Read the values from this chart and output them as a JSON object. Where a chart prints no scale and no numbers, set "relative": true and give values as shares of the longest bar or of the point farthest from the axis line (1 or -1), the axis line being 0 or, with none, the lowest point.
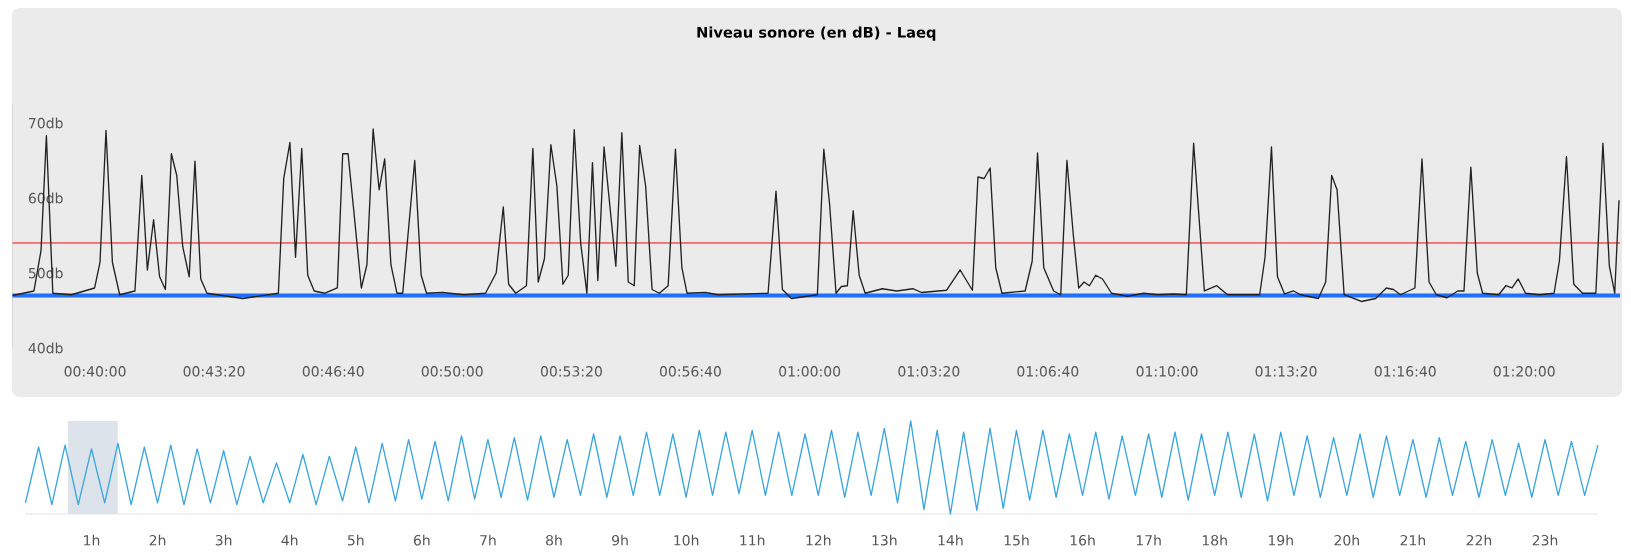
{
  "chart_data": [
    {
      "type": "line",
      "title": "Niveau sonore (en dB) - Laeq",
      "color": "#222222",
      "marker": "none",
      "x": [
        0.6282,
        0.6382,
        0.6415,
        0.644,
        0.647,
        0.6557,
        0.6665,
        0.669,
        0.6718,
        0.6748,
        0.6782,
        0.6853,
        0.6885,
        0.6911,
        0.694,
        0.6968,
        0.6995,
        0.7023,
        0.7048,
        0.7076,
        0.7106,
        0.7133,
        0.716,
        0.7189,
        0.7356,
        0.7522,
        0.7547,
        0.7576,
        0.7602,
        0.7631,
        0.7659,
        0.7689,
        0.7739,
        0.7797,
        0.7822,
        0.7847,
        0.7872,
        0.7909,
        0.7935,
        0.7964,
        0.7992,
        0.8018,
        0.8047,
        0.8075,
        0.8102,
        0.8158,
        0.8188,
        0.8213,
        0.8288,
        0.8388,
        0.8488,
        0.8538,
        0.8571,
        0.8596,
        0.8629,
        0.8679,
        0.8709,
        0.8734,
        0.8763,
        0.8793,
        0.8821,
        0.8849,
        0.8874,
        0.8902,
        0.8932,
        0.8961,
        0.8987,
        0.9012,
        0.9041,
        0.9096,
        0.9124,
        0.9154,
        0.9182,
        0.9207,
        0.9235,
        0.9265,
        0.9299,
        0.934,
        0.9374,
        0.9404,
        0.9428,
        0.9515,
        0.9573,
        0.9806,
        0.9843,
        0.9873,
        0.9915,
        1.0036,
        1.0066,
        1.0093,
        1.0123,
        1.0148,
        1.0176,
        1.0203,
        1.0231,
        1.0259,
        1.0339,
        1.0406,
        1.0481,
        1.0522,
        1.0639,
        1.0702,
        1.0759,
        1.0785,
        1.0814,
        1.0842,
        1.0868,
        1.0897,
        1.1005,
        1.1038,
        1.1063,
        1.1092,
        1.1138,
        1.1171,
        1.12,
        1.123,
        1.1255,
        1.128,
        1.1305,
        1.1334,
        1.1366,
        1.1408,
        1.1483,
        1.1558,
        1.1624,
        1.1699,
        1.1757,
        1.1791,
        1.1841,
        1.1899,
        1.1949,
        1.2099,
        1.2124,
        1.2154,
        1.2182,
        1.2215,
        1.2257,
        1.229,
        1.2373,
        1.2407,
        1.2435,
        1.246,
        1.2493,
        1.2573,
        1.264,
        1.269,
        1.2723,
        1.2756,
        1.2823,
        1.2856,
        1.2889,
        1.2923,
        1.2973,
        1.3023,
        1.3052,
        1.3084,
        1.3114,
        1.3139,
        1.3214,
        1.3247,
        1.3276,
        1.3305,
        1.3339,
        1.3405,
        1.3472,
        1.3497,
        1.353,
        1.3564,
        1.3605,
        1.3667,
        1.37,
        1.373,
        1.3755,
        1.3775
      ],
      "values": [
        47,
        47.6,
        53,
        68.3,
        47.3,
        47.1,
        48,
        51.4,
        69,
        51.4,
        47.1,
        47.6,
        63,
        50.4,
        57.1,
        49.5,
        47.8,
        65.9,
        63,
        53.5,
        49.5,
        64.9,
        49.2,
        47.3,
        46.6,
        47.3,
        62.6,
        67.4,
        52.1,
        66.6,
        49.7,
        47.6,
        47.3,
        48,
        65.9,
        65.9,
        58.8,
        48,
        51.1,
        69.2,
        61.1,
        65.2,
        51.1,
        47.3,
        47.3,
        65,
        49.7,
        47.3,
        47.4,
        47.1,
        47.3,
        50,
        58.8,
        48.5,
        47.3,
        48.3,
        66.6,
        48.8,
        51.9,
        67.1,
        61.6,
        48.5,
        49.7,
        69.1,
        54,
        47.3,
        64.7,
        49,
        66.8,
        50.9,
        68.7,
        48.8,
        48.3,
        67,
        61.6,
        47.8,
        47.3,
        48.3,
        66.5,
        50.7,
        47.3,
        47.4,
        47.1,
        47.3,
        60.9,
        47.8,
        46.6,
        47.1,
        66.5,
        59.2,
        47.3,
        48.2,
        48.3,
        58.3,
        49.7,
        47.3,
        47.9,
        47.6,
        47.9,
        47.4,
        47.7,
        50.4,
        47.7,
        62.8,
        62.6,
        64,
        50.7,
        47.3,
        47.6,
        51.6,
        66,
        50.7,
        47.6,
        47.1,
        65,
        55,
        48,
        48.8,
        48.3,
        49.7,
        49.2,
        47.3,
        46.9,
        47.3,
        47.1,
        47.2,
        47.1,
        67.3,
        47.6,
        48.3,
        47.1,
        47.1,
        52.1,
        66.8,
        49.5,
        47.2,
        47.6,
        47.1,
        46.6,
        48.8,
        63,
        61.1,
        47.1,
        46.2,
        46.6,
        48,
        47.8,
        47.1,
        48,
        65.2,
        48.8,
        47.1,
        46.7,
        47.6,
        47.6,
        64.1,
        50,
        47.3,
        47.1,
        48.3,
        48,
        49.2,
        47.3,
        47.1,
        47.3,
        51.6,
        65.5,
        48.5,
        47.3,
        47.3,
        67.3,
        50.9,
        47.3,
        59.7
      ],
      "xlim": [
        0.6282,
        1.378
      ],
      "xticks": [
        {
          "value": 0.6667,
          "label": "00:40:00"
        },
        {
          "value": 0.7222,
          "label": "00:43:20"
        },
        {
          "value": 0.7778,
          "label": "00:46:40"
        },
        {
          "value": 0.8333,
          "label": "00:50:00"
        },
        {
          "value": 0.8889,
          "label": "00:53:20"
        },
        {
          "value": 0.9444,
          "label": "00:56:40"
        },
        {
          "value": 1.0,
          "label": "01:00:00"
        },
        {
          "value": 1.0556,
          "label": "01:03:20"
        },
        {
          "value": 1.1111,
          "label": "01:06:40"
        },
        {
          "value": 1.1667,
          "label": "01:10:00"
        },
        {
          "value": 1.2222,
          "label": "01:13:20"
        },
        {
          "value": 1.2778,
          "label": "01:16:40"
        },
        {
          "value": 1.3333,
          "label": "01:20:00"
        }
      ],
      "ylim": [
        40,
        72.5
      ],
      "yticks": [
        {
          "value": 40,
          "label": "40db"
        },
        {
          "value": 50,
          "label": "50db"
        },
        {
          "value": 60,
          "label": "60db"
        },
        {
          "value": 70,
          "label": "70db"
        }
      ],
      "ref_lines": [
        {
          "axis": "y",
          "value": 54,
          "color": "#ff0000"
        },
        {
          "axis": "y",
          "value": 47,
          "color": "#1f6fff"
        }
      ]
    },
    {
      "type": "line",
      "relative": true,
      "color": "#3aa6dd",
      "marker": "none",
      "tick_labels": "x",
      "x": [
        0,
        0.2,
        0.4,
        0.6,
        0.8,
        1,
        1.2,
        1.4,
        1.6,
        1.8,
        2,
        2.2,
        2.4,
        2.6,
        2.8,
        3,
        3.2,
        3.4,
        3.6,
        3.8,
        4,
        4.2,
        4.4,
        4.6,
        4.8,
        5,
        5.2,
        5.4,
        5.6,
        5.8,
        6,
        6.2,
        6.4,
        6.6,
        6.8,
        7,
        7.2,
        7.4,
        7.6,
        7.8,
        8,
        8.2,
        8.4,
        8.6,
        8.8,
        9,
        9.2,
        9.4,
        9.6,
        9.8,
        10,
        10.2,
        10.4,
        10.6,
        10.8,
        11,
        11.2,
        11.4,
        11.6,
        11.8,
        12,
        12.2,
        12.4,
        12.6,
        12.8,
        13,
        13.2,
        13.4,
        13.6,
        13.8,
        14,
        14.2,
        14.4,
        14.6,
        14.8,
        15,
        15.2,
        15.4,
        15.6,
        15.8,
        16,
        16.2,
        16.4,
        16.6,
        16.8,
        17,
        17.2,
        17.4,
        17.6,
        17.8,
        18,
        18.2,
        18.4,
        18.6,
        18.8,
        19,
        19.2,
        19.4,
        19.6,
        19.8,
        20,
        20.2,
        20.4,
        20.6,
        20.8,
        21,
        21.2,
        21.4,
        21.6,
        21.8,
        22,
        22.2,
        22.4,
        22.6,
        22.8,
        23,
        23.2,
        23.4,
        23.6,
        23.8
      ],
      "values": [
        0.12,
        0.72,
        0.1,
        0.74,
        0.1,
        0.7,
        0.12,
        0.76,
        0.1,
        0.72,
        0.12,
        0.74,
        0.1,
        0.7,
        0.12,
        0.68,
        0.1,
        0.62,
        0.12,
        0.55,
        0.12,
        0.64,
        0.1,
        0.62,
        0.14,
        0.72,
        0.12,
        0.76,
        0.14,
        0.8,
        0.16,
        0.78,
        0.14,
        0.84,
        0.16,
        0.8,
        0.18,
        0.82,
        0.15,
        0.84,
        0.18,
        0.8,
        0.2,
        0.86,
        0.18,
        0.84,
        0.2,
        0.88,
        0.2,
        0.86,
        0.18,
        0.9,
        0.2,
        0.88,
        0.22,
        0.9,
        0.2,
        0.88,
        0.2,
        0.86,
        0.2,
        0.9,
        0.18,
        0.88,
        0.2,
        0.92,
        0.12,
        1,
        0.05,
        0.9,
        0,
        0.88,
        0.04,
        0.92,
        0.06,
        0.9,
        0.15,
        0.9,
        0.18,
        0.86,
        0.2,
        0.88,
        0.16,
        0.84,
        0.2,
        0.86,
        0.18,
        0.88,
        0.15,
        0.86,
        0.2,
        0.88,
        0.18,
        0.86,
        0.14,
        0.88,
        0.2,
        0.84,
        0.18,
        0.82,
        0.2,
        0.86,
        0.18,
        0.84,
        0.2,
        0.8,
        0.18,
        0.82,
        0.2,
        0.78,
        0.18,
        0.8,
        0.2,
        0.76,
        0.18,
        0.8,
        0.2,
        0.78,
        0.2,
        0.74
      ],
      "xlim": [
        0,
        23.8
      ],
      "xticks": [
        {
          "value": 1,
          "label": "1h"
        },
        {
          "value": 2,
          "label": "2h"
        },
        {
          "value": 3,
          "label": "3h"
        },
        {
          "value": 4,
          "label": "4h"
        },
        {
          "value": 5,
          "label": "5h"
        },
        {
          "value": 6,
          "label": "6h"
        },
        {
          "value": 7,
          "label": "7h"
        },
        {
          "value": 8,
          "label": "8h"
        },
        {
          "value": 9,
          "label": "9h"
        },
        {
          "value": 10,
          "label": "10h"
        },
        {
          "value": 11,
          "label": "11h"
        },
        {
          "value": 12,
          "label": "12h"
        },
        {
          "value": 13,
          "label": "13h"
        },
        {
          "value": 14,
          "label": "14h"
        },
        {
          "value": 15,
          "label": "15h"
        },
        {
          "value": 16,
          "label": "16h"
        },
        {
          "value": 17,
          "label": "17h"
        },
        {
          "value": 18,
          "label": "18h"
        },
        {
          "value": 19,
          "label": "19h"
        },
        {
          "value": 20,
          "label": "20h"
        },
        {
          "value": 21,
          "label": "21h"
        },
        {
          "value": 22,
          "label": "22h"
        },
        {
          "value": 23,
          "label": "23h"
        }
      ],
      "bands": [
        {
          "axis": "x",
          "from": 0.645,
          "to": 1.397,
          "color": "#dde3ea"
        }
      ]
    }
  ]
}
